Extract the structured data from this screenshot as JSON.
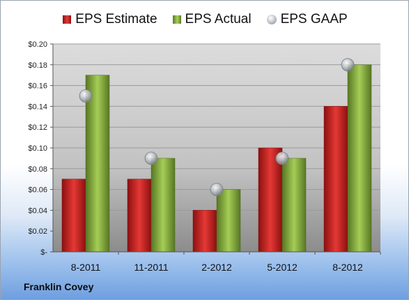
{
  "chart_data": {
    "type": "bar",
    "categories": [
      "8-2011",
      "11-2011",
      "2-2012",
      "5-2012",
      "8-2012"
    ],
    "series": [
      {
        "name": "EPS Estimate",
        "values": [
          0.07,
          0.07,
          0.04,
          0.1,
          0.14
        ],
        "color": "#c62828",
        "kind": "bar"
      },
      {
        "name": "EPS Actual",
        "values": [
          0.17,
          0.09,
          0.06,
          0.09,
          0.18
        ],
        "color": "#7fa33a",
        "kind": "bar"
      },
      {
        "name": "EPS GAAP",
        "values": [
          0.15,
          0.09,
          0.06,
          0.09,
          0.18
        ],
        "color": "#a7adb4",
        "kind": "marker"
      }
    ],
    "ylim": [
      0,
      0.2
    ],
    "yticks": [
      {
        "value": 0,
        "label": "$-"
      },
      {
        "value": 0.02,
        "label": "$0.02"
      },
      {
        "value": 0.04,
        "label": "$0.04"
      },
      {
        "value": 0.06,
        "label": "$0.06"
      },
      {
        "value": 0.08,
        "label": "$0.08"
      },
      {
        "value": 0.1,
        "label": "$0.10"
      },
      {
        "value": 0.12,
        "label": "$0.12"
      },
      {
        "value": 0.14,
        "label": "$0.14"
      },
      {
        "value": 0.16,
        "label": "$0.16"
      },
      {
        "value": 0.18,
        "label": "$0.18"
      },
      {
        "value": 0.2,
        "label": "$0.20"
      }
    ],
    "grid": true,
    "legend": "top-center"
  },
  "footer": {
    "company": "Franklin Covey"
  },
  "legend": {
    "estimate": "EPS Estimate",
    "actual": "EPS Actual",
    "gaap": "EPS GAAP"
  }
}
